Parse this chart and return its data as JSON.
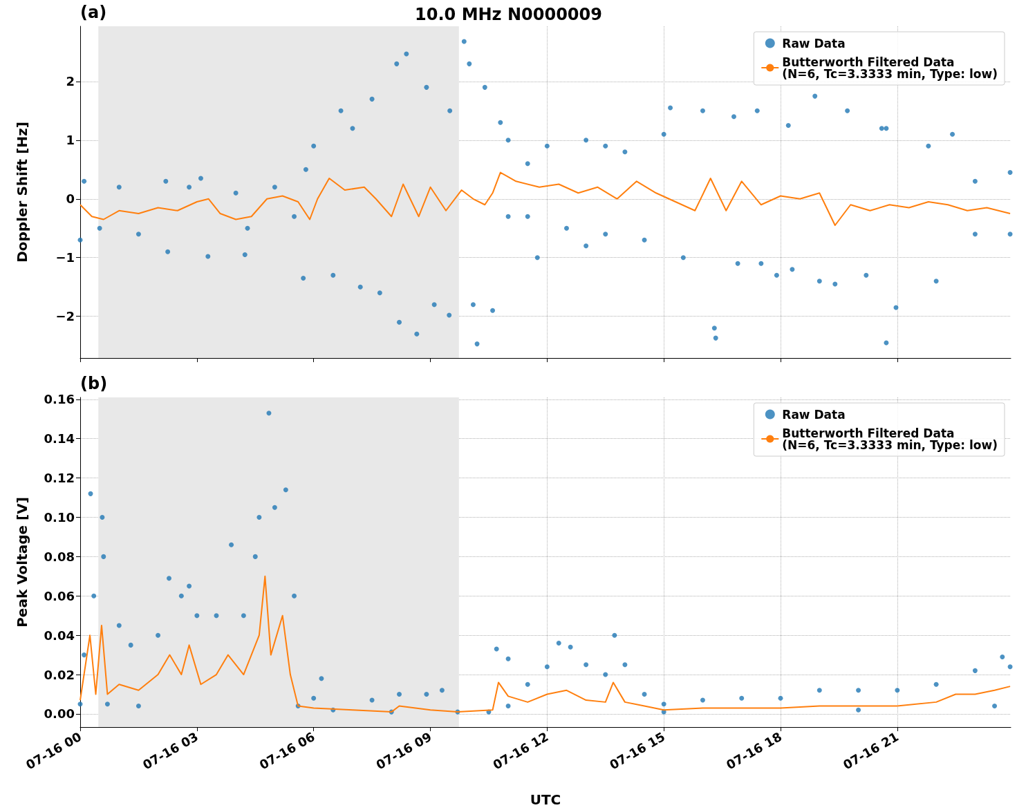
{
  "chart_data": [
    {
      "type": "scatter",
      "title": "10.0 MHz N0000009",
      "ylabel": "Doppler Shift [Hz]",
      "annotations": [
        "(a)"
      ],
      "xlim": [
        "--07-16T00:00",
        "--07-16T23:55"
      ],
      "xticks": [
        {
          "value": "--07-16T00:00",
          "label": "07-16 00"
        },
        {
          "value": "--07-16T03:00",
          "label": "07-16 03"
        },
        {
          "value": "--07-16T06:00",
          "label": "07-16 06"
        },
        {
          "value": "--07-16T09:00",
          "label": "07-16 09"
        },
        {
          "value": "--07-16T12:00",
          "label": "07-16 12"
        },
        {
          "value": "--07-16T15:00",
          "label": "07-16 15"
        },
        {
          "value": "--07-16T18:00",
          "label": "07-16 18"
        },
        {
          "value": "--07-16T21:00",
          "label": "07-16 21"
        }
      ],
      "ylim": [
        -2.71,
        2.94
      ],
      "yticks": [
        {
          "value": -2,
          "label": "−2"
        },
        {
          "value": -1,
          "label": "−1"
        },
        0,
        1,
        2
      ],
      "tick_labels": "y",
      "grid": true,
      "legend": "top right",
      "line_style": "solid",
      "bands": [
        {
          "axis": "x",
          "from": "--07-16T00:28",
          "to": "--07-16T09:44",
          "color": "#e8e8e8"
        }
      ],
      "series": [
        {
          "name": "Raw Data",
          "marker": "circle",
          "color": "#1f77b4",
          "x": [
            "--07-16T00:00",
            "--07-16T00:06",
            "--07-16T00:30",
            "--07-16T01:00",
            "--07-16T01:30",
            "--07-16T02:15",
            "--07-16T02:12",
            "--07-16T02:48",
            "--07-16T03:06",
            "--07-16T03:17",
            "--07-16T04:00",
            "--07-16T04:14",
            "--07-16T04:18",
            "--07-16T05:00",
            "--07-16T05:30",
            "--07-16T05:48",
            "--07-16T05:44",
            "--07-16T06:00",
            "--07-16T06:42",
            "--07-16T06:30",
            "--07-16T07:00",
            "--07-16T07:12",
            "--07-16T07:30",
            "--07-16T07:42",
            "--07-16T08:08",
            "--07-16T08:12",
            "--07-16T08:23",
            "--07-16T08:39",
            "--07-16T08:54",
            "--07-16T09:06",
            "--07-16T09:29",
            "--07-16T09:30",
            "--07-16T09:52",
            "--07-16T10:00",
            "--07-16T10:06",
            "--07-16T10:12",
            "--07-16T10:24",
            "--07-16T10:36",
            "--07-16T10:48",
            "--07-16T11:00",
            "--07-16T11:00",
            "--07-16T11:30",
            "--07-16T11:30",
            "--07-16T11:45",
            "--07-16T12:00",
            "--07-16T12:30",
            "--07-16T13:00",
            "--07-16T13:00",
            "--07-16T13:30",
            "--07-16T13:30",
            "--07-16T14:00",
            "--07-16T14:30",
            "--07-16T15:00",
            "--07-16T15:10",
            "--07-16T15:30",
            "--07-16T16:00",
            "--07-16T16:20",
            "--07-16T16:18",
            "--07-16T16:48",
            "--07-16T16:54",
            "--07-16T17:24",
            "--07-16T17:30",
            "--07-16T17:54",
            "--07-16T18:12",
            "--07-16T18:18",
            "--07-16T18:53",
            "--07-16T19:00",
            "--07-16T19:24",
            "--07-16T19:43",
            "--07-16T20:12",
            "--07-16T20:36",
            "--07-16T20:43",
            "--07-16T20:43",
            "--07-16T20:58",
            "--07-16T21:48",
            "--07-16T22:00",
            "--07-16T22:25",
            "--07-16T23:00",
            "--07-16T23:00",
            "--07-16T23:54",
            "--07-16T23:54"
          ],
          "values": [
            -0.7,
            0.3,
            -0.5,
            0.2,
            -0.6,
            -0.9,
            0.3,
            0.2,
            0.35,
            -0.98,
            0.1,
            -0.95,
            -0.5,
            0.2,
            -0.3,
            0.5,
            -1.35,
            0.9,
            1.5,
            -1.3,
            1.2,
            -1.5,
            1.7,
            -1.6,
            2.3,
            -2.1,
            2.47,
            -2.3,
            1.9,
            -1.8,
            -1.98,
            1.5,
            2.68,
            2.3,
            -1.8,
            -2.47,
            1.9,
            -1.9,
            1.3,
            1.0,
            -0.3,
            0.6,
            -0.3,
            -1.0,
            0.9,
            -0.5,
            1.0,
            -0.8,
            0.9,
            -0.6,
            0.8,
            -0.7,
            1.1,
            1.55,
            -1.0,
            1.5,
            -2.37,
            -2.2,
            1.4,
            -1.1,
            1.5,
            -1.1,
            -1.3,
            1.25,
            -1.2,
            1.75,
            -1.4,
            -1.45,
            1.5,
            -1.3,
            1.2,
            -2.45,
            1.2,
            -1.85,
            0.9,
            -1.4,
            1.1,
            0.3,
            -0.6,
            0.45,
            -0.6
          ]
        },
        {
          "name": "Butterworth Filtered Data\n(N=6, Tc=3.3333 min, Type: low)",
          "type": "line",
          "color": "#ff7f0e",
          "x": [
            "--07-16T00:00",
            "--07-16T00:18",
            "--07-16T00:36",
            "--07-16T01:00",
            "--07-16T01:30",
            "--07-16T02:00",
            "--07-16T02:30",
            "--07-16T03:00",
            "--07-16T03:18",
            "--07-16T03:36",
            "--07-16T04:00",
            "--07-16T04:24",
            "--07-16T04:48",
            "--07-16T05:12",
            "--07-16T05:36",
            "--07-16T05:54",
            "--07-16T06:06",
            "--07-16T06:24",
            "--07-16T06:48",
            "--07-16T07:18",
            "--07-16T07:36",
            "--07-16T08:00",
            "--07-16T08:18",
            "--07-16T08:42",
            "--07-16T09:00",
            "--07-16T09:24",
            "--07-16T09:48",
            "--07-16T10:06",
            "--07-16T10:24",
            "--07-16T10:36",
            "--07-16T10:48",
            "--07-16T11:12",
            "--07-16T11:48",
            "--07-16T12:18",
            "--07-16T12:48",
            "--07-16T13:18",
            "--07-16T13:48",
            "--07-16T14:18",
            "--07-16T14:48",
            "--07-16T15:18",
            "--07-16T15:48",
            "--07-16T16:12",
            "--07-16T16:36",
            "--07-16T17:00",
            "--07-16T17:30",
            "--07-16T18:00",
            "--07-16T18:30",
            "--07-16T19:00",
            "--07-16T19:24",
            "--07-16T19:48",
            "--07-16T20:18",
            "--07-16T20:48",
            "--07-16T21:18",
            "--07-16T21:48",
            "--07-16T22:18",
            "--07-16T22:48",
            "--07-16T23:18",
            "--07-16T23:54"
          ],
          "values": [
            -0.1,
            -0.3,
            -0.35,
            -0.2,
            -0.25,
            -0.15,
            -0.2,
            -0.05,
            0.0,
            -0.25,
            -0.35,
            -0.3,
            0.0,
            0.05,
            -0.05,
            -0.35,
            0.0,
            0.35,
            0.15,
            0.2,
            0.0,
            -0.3,
            0.25,
            -0.3,
            0.2,
            -0.2,
            0.15,
            0.0,
            -0.1,
            0.1,
            0.45,
            0.3,
            0.2,
            0.25,
            0.1,
            0.2,
            0.0,
            0.3,
            0.1,
            -0.05,
            -0.2,
            0.35,
            -0.2,
            0.3,
            -0.1,
            0.05,
            0.0,
            0.1,
            -0.45,
            -0.1,
            -0.2,
            -0.1,
            -0.15,
            -0.05,
            -0.1,
            -0.2,
            -0.15,
            -0.25
          ]
        }
      ]
    },
    {
      "type": "scatter",
      "xlabel": "UTC",
      "ylabel": "Peak Voltage [V]",
      "annotations": [
        "(b)"
      ],
      "xlim": [
        "--07-16T00:00",
        "--07-16T23:55"
      ],
      "xticks": [
        {
          "value": "--07-16T00:00",
          "label": "07-16 00"
        },
        {
          "value": "--07-16T03:00",
          "label": "07-16 03"
        },
        {
          "value": "--07-16T06:00",
          "label": "07-16 06"
        },
        {
          "value": "--07-16T09:00",
          "label": "07-16 09"
        },
        {
          "value": "--07-16T12:00",
          "label": "07-16 12"
        },
        {
          "value": "--07-16T15:00",
          "label": "07-16 15"
        },
        {
          "value": "--07-16T18:00",
          "label": "07-16 18"
        },
        {
          "value": "--07-16T21:00",
          "label": "07-16 21"
        }
      ],
      "ylim": [
        -0.0067,
        0.161
      ],
      "yticks": [
        {
          "value": 0,
          "label": "0.00"
        },
        {
          "value": 0.02,
          "label": "0.02"
        },
        {
          "value": 0.04,
          "label": "0.04"
        },
        {
          "value": 0.06,
          "label": "0.06"
        },
        {
          "value": 0.08,
          "label": "0.08"
        },
        {
          "value": 0.1,
          "label": "0.10"
        },
        {
          "value": 0.12,
          "label": "0.12"
        },
        {
          "value": 0.14,
          "label": "0.14"
        },
        {
          "value": 0.16,
          "label": "0.16"
        }
      ],
      "grid": true,
      "legend": "top right",
      "line_style": "solid",
      "bands": [
        {
          "axis": "x",
          "from": "--07-16T00:28",
          "to": "--07-16T09:44",
          "color": "#e8e8e8"
        }
      ],
      "series": [
        {
          "name": "Raw Data",
          "marker": "circle",
          "color": "#1f77b4",
          "x": [
            "--07-16T00:00",
            "--07-16T00:06",
            "--07-16T00:16",
            "--07-16T00:21",
            "--07-16T00:34",
            "--07-16T00:36",
            "--07-16T00:42",
            "--07-16T01:00",
            "--07-16T01:18",
            "--07-16T01:30",
            "--07-16T02:00",
            "--07-16T02:17",
            "--07-16T02:36",
            "--07-16T02:48",
            "--07-16T03:00",
            "--07-16T03:30",
            "--07-16T03:53",
            "--07-16T04:12",
            "--07-16T04:30",
            "--07-16T04:36",
            "--07-16T04:51",
            "--07-16T05:00",
            "--07-16T05:17",
            "--07-16T05:30",
            "--07-16T05:36",
            "--07-16T06:00",
            "--07-16T06:12",
            "--07-16T06:30",
            "--07-16T07:30",
            "--07-16T08:00",
            "--07-16T08:12",
            "--07-16T08:54",
            "--07-16T09:18",
            "--07-16T09:42",
            "--07-16T10:30",
            "--07-16T10:42",
            "--07-16T11:00",
            "--07-16T11:30",
            "--07-16T12:00",
            "--07-16T12:18",
            "--07-16T12:36",
            "--07-16T13:00",
            "--07-16T13:30",
            "--07-16T13:44",
            "--07-16T14:00",
            "--07-16T14:30",
            "--07-16T15:00",
            "--07-16T16:00",
            "--07-16T17:00",
            "--07-16T18:00",
            "--07-16T19:00",
            "--07-16T20:00",
            "--07-16T21:00",
            "--07-16T22:00",
            "--07-16T23:00",
            "--07-16T23:42",
            "--07-16T23:54",
            "--07-16T11:00",
            "--07-16T15:00",
            "--07-16T20:00",
            "--07-16T23:30"
          ],
          "values": [
            0.005,
            0.03,
            0.112,
            0.06,
            0.1,
            0.08,
            0.005,
            0.045,
            0.035,
            0.004,
            0.04,
            0.069,
            0.06,
            0.065,
            0.05,
            0.05,
            0.086,
            0.05,
            0.08,
            0.1,
            0.153,
            0.105,
            0.114,
            0.06,
            0.004,
            0.008,
            0.018,
            0.002,
            0.007,
            0.001,
            0.01,
            0.01,
            0.012,
            0.001,
            0.001,
            0.033,
            0.028,
            0.015,
            0.024,
            0.036,
            0.034,
            0.025,
            0.02,
            0.04,
            0.025,
            0.01,
            0.005,
            0.007,
            0.008,
            0.008,
            0.012,
            0.012,
            0.012,
            0.015,
            0.022,
            0.029,
            0.024,
            0.004,
            0.001,
            0.002,
            0.004
          ]
        },
        {
          "name": "Butterworth Filtered Data\n(N=6, Tc=3.3333 min, Type: low)",
          "type": "line",
          "color": "#ff7f0e",
          "x": [
            "--07-16T00:00",
            "--07-16T00:15",
            "--07-16T00:24",
            "--07-16T00:33",
            "--07-16T00:42",
            "--07-16T01:00",
            "--07-16T01:30",
            "--07-16T02:00",
            "--07-16T02:18",
            "--07-16T02:36",
            "--07-16T02:48",
            "--07-16T03:06",
            "--07-16T03:30",
            "--07-16T03:48",
            "--07-16T04:12",
            "--07-16T04:36",
            "--07-16T04:45",
            "--07-16T04:54",
            "--07-16T05:12",
            "--07-16T05:24",
            "--07-16T05:36",
            "--07-16T06:00",
            "--07-16T07:00",
            "--07-16T08:00",
            "--07-16T08:12",
            "--07-16T09:00",
            "--07-16T09:42",
            "--07-16T10:36",
            "--07-16T10:45",
            "--07-16T11:00",
            "--07-16T11:30",
            "--07-16T12:00",
            "--07-16T12:30",
            "--07-16T13:00",
            "--07-16T13:30",
            "--07-16T13:42",
            "--07-16T14:00",
            "--07-16T14:30",
            "--07-16T15:00",
            "--07-16T16:00",
            "--07-16T17:00",
            "--07-16T18:00",
            "--07-16T19:00",
            "--07-16T20:00",
            "--07-16T21:00",
            "--07-16T22:00",
            "--07-16T22:30",
            "--07-16T23:00",
            "--07-16T23:30",
            "--07-16T23:54"
          ],
          "values": [
            0.007,
            0.04,
            0.01,
            0.045,
            0.01,
            0.015,
            0.012,
            0.02,
            0.03,
            0.02,
            0.035,
            0.015,
            0.02,
            0.03,
            0.02,
            0.04,
            0.07,
            0.03,
            0.05,
            0.02,
            0.004,
            0.003,
            0.002,
            0.001,
            0.004,
            0.002,
            0.001,
            0.002,
            0.016,
            0.009,
            0.006,
            0.01,
            0.012,
            0.007,
            0.006,
            0.016,
            0.006,
            0.004,
            0.002,
            0.003,
            0.003,
            0.003,
            0.004,
            0.004,
            0.004,
            0.006,
            0.01,
            0.01,
            0.012,
            0.014
          ]
        }
      ]
    }
  ]
}
